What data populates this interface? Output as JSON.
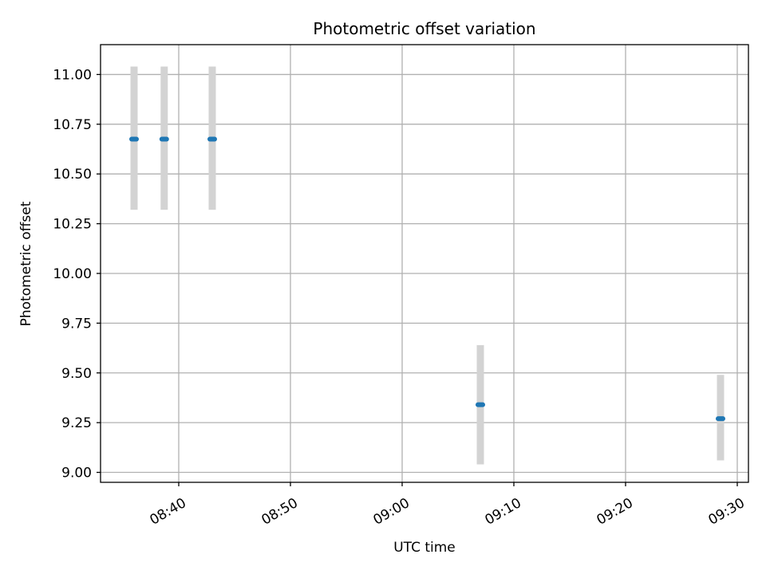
{
  "chart_data": {
    "type": "scatter",
    "title": "Photometric offset variation",
    "xlabel": "UTC time",
    "ylabel": "Photometric offset",
    "x_is_time": true,
    "xlim": [
      "08:33",
      "09:31"
    ],
    "ylim": [
      8.95,
      11.15
    ],
    "xticks": [
      "08:40",
      "08:50",
      "09:00",
      "09:10",
      "09:20",
      "09:30"
    ],
    "yticks": [
      "9.00",
      "9.25",
      "9.50",
      "9.75",
      "10.00",
      "10.25",
      "10.50",
      "10.75",
      "11.00"
    ],
    "grid": true,
    "series": [
      {
        "color": "#1f77b4",
        "errbar_color": "#d3d3d3",
        "points": [
          {
            "x": "08:36",
            "y": 10.675,
            "ylow": 10.32,
            "yhigh": 11.04
          },
          {
            "x": "08:38.7",
            "y": 10.675,
            "ylow": 10.32,
            "yhigh": 11.04
          },
          {
            "x": "08:43",
            "y": 10.675,
            "ylow": 10.32,
            "yhigh": 11.04
          },
          {
            "x": "09:07",
            "y": 9.34,
            "ylow": 9.04,
            "yhigh": 9.64
          },
          {
            "x": "09:28.5",
            "y": 9.27,
            "ylow": 9.06,
            "yhigh": 9.49
          }
        ]
      }
    ]
  }
}
